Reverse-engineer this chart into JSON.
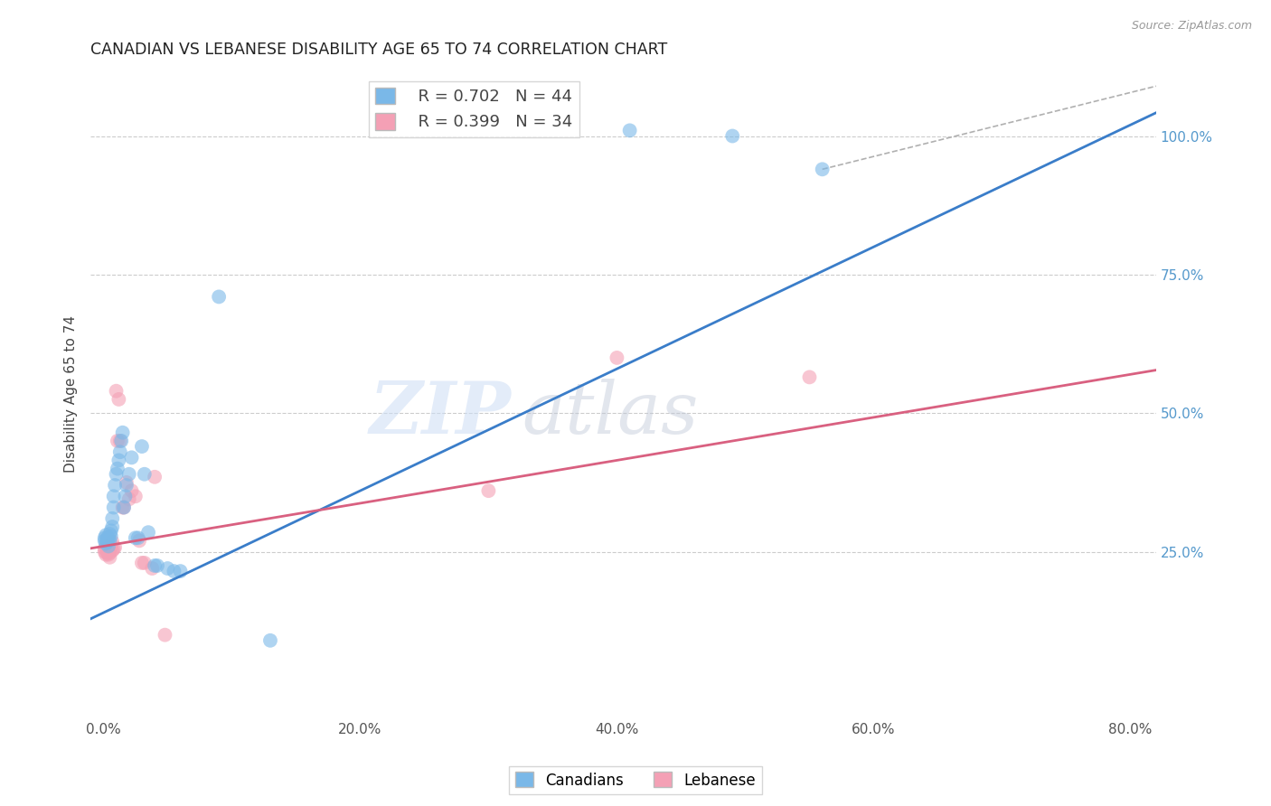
{
  "title": "CANADIAN VS LEBANESE DISABILITY AGE 65 TO 74 CORRELATION CHART",
  "source": "Source: ZipAtlas.com",
  "xlabel_ticks": [
    "0.0%",
    "20.0%",
    "40.0%",
    "60.0%",
    "80.0%"
  ],
  "xlabel_vals": [
    0.0,
    0.2,
    0.4,
    0.6,
    0.8
  ],
  "ylabel_ticks": [
    "25.0%",
    "50.0%",
    "75.0%",
    "100.0%"
  ],
  "ylabel_vals": [
    0.25,
    0.5,
    0.75,
    1.0
  ],
  "ylabel_label": "Disability Age 65 to 74",
  "canadians_R": 0.702,
  "canadians_N": 44,
  "lebanese_R": 0.399,
  "lebanese_N": 34,
  "canadian_color": "#7ab8e8",
  "lebanese_color": "#f4a0b5",
  "canadian_line_color": "#3a7dc9",
  "lebanese_line_color": "#d96080",
  "watermark_zip": "ZIP",
  "watermark_atlas": "atlas",
  "canadians_x": [
    0.001,
    0.001,
    0.002,
    0.002,
    0.003,
    0.003,
    0.003,
    0.004,
    0.004,
    0.005,
    0.005,
    0.006,
    0.006,
    0.007,
    0.007,
    0.008,
    0.008,
    0.009,
    0.01,
    0.011,
    0.012,
    0.013,
    0.014,
    0.015,
    0.016,
    0.017,
    0.018,
    0.02,
    0.022,
    0.025,
    0.027,
    0.03,
    0.032,
    0.035,
    0.04,
    0.042,
    0.05,
    0.055,
    0.06,
    0.09,
    0.13,
    0.41,
    0.49,
    0.56
  ],
  "canadians_y": [
    0.27,
    0.275,
    0.265,
    0.28,
    0.268,
    0.272,
    0.275,
    0.26,
    0.275,
    0.27,
    0.282,
    0.278,
    0.288,
    0.295,
    0.31,
    0.33,
    0.35,
    0.37,
    0.39,
    0.4,
    0.415,
    0.43,
    0.45,
    0.465,
    0.33,
    0.35,
    0.37,
    0.39,
    0.42,
    0.275,
    0.275,
    0.44,
    0.39,
    0.285,
    0.225,
    0.225,
    0.22,
    0.215,
    0.215,
    0.71,
    0.09,
    1.01,
    1.0,
    0.94
  ],
  "lebanese_x": [
    0.001,
    0.001,
    0.002,
    0.002,
    0.003,
    0.003,
    0.004,
    0.004,
    0.005,
    0.005,
    0.006,
    0.007,
    0.007,
    0.008,
    0.009,
    0.01,
    0.011,
    0.012,
    0.013,
    0.015,
    0.016,
    0.018,
    0.02,
    0.022,
    0.025,
    0.028,
    0.03,
    0.032,
    0.038,
    0.04,
    0.048,
    0.3,
    0.4,
    0.55
  ],
  "lebanese_y": [
    0.25,
    0.255,
    0.245,
    0.26,
    0.252,
    0.248,
    0.245,
    0.255,
    0.24,
    0.248,
    0.258,
    0.252,
    0.268,
    0.255,
    0.258,
    0.54,
    0.45,
    0.525,
    0.45,
    0.33,
    0.33,
    0.375,
    0.345,
    0.36,
    0.35,
    0.27,
    0.23,
    0.23,
    0.22,
    0.385,
    0.1,
    0.36,
    0.6,
    0.565
  ],
  "dot_size": 130,
  "xlim": [
    -0.01,
    0.82
  ],
  "ylim": [
    -0.05,
    1.12
  ],
  "background": "#ffffff",
  "grid_color": "#cccccc",
  "grid_style": "--"
}
